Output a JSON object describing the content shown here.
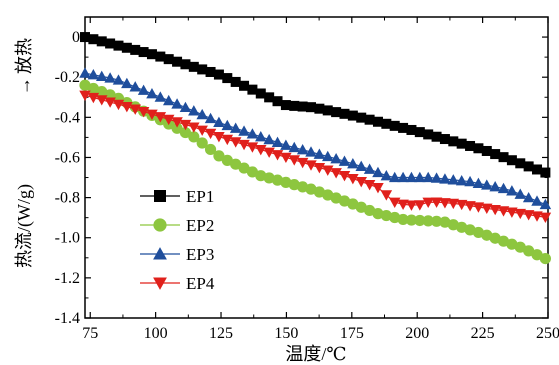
{
  "chart_data": {
    "type": "line",
    "xlabel": "温度/℃",
    "ylabel_main": "热流/(W/g)",
    "ylabel_annotation": "放热",
    "ylabel_arrow": "→",
    "xlim": [
      73,
      250
    ],
    "ylim": [
      -1.4,
      0.1
    ],
    "x_ticks": [
      75,
      100,
      125,
      150,
      175,
      200,
      225,
      250
    ],
    "x_tick_labels": [
      "75",
      "100",
      "125",
      "150",
      "175",
      "200",
      "225",
      "250"
    ],
    "y_ticks": [
      0,
      -0.2,
      -0.4,
      -0.6,
      -0.8,
      -1.0,
      -1.2,
      -1.4
    ],
    "y_tick_labels": [
      "0",
      "-0.2",
      "-0.4",
      "-0.6",
      "-0.8",
      "-1.0",
      "-1.2",
      "-1.4"
    ],
    "grid": false,
    "legend_placement": "lower-left",
    "x_start": 73,
    "x_step": 3.2,
    "series": [
      {
        "name": "EP1",
        "marker": "square",
        "color": "#000000",
        "points": [
          [
            73,
            0.0
          ],
          [
            100,
            -0.09
          ],
          [
            125,
            -0.19
          ],
          [
            145,
            -0.31
          ],
          [
            150,
            -0.34
          ],
          [
            160,
            -0.35
          ],
          [
            175,
            -0.39
          ],
          [
            200,
            -0.47
          ],
          [
            225,
            -0.56
          ],
          [
            250,
            -0.68
          ]
        ]
      },
      {
        "name": "EP2",
        "marker": "circle",
        "color": "#8dc63f",
        "points": [
          [
            73,
            -0.24
          ],
          [
            85,
            -0.3
          ],
          [
            100,
            -0.4
          ],
          [
            115,
            -0.5
          ],
          [
            125,
            -0.6
          ],
          [
            140,
            -0.69
          ],
          [
            160,
            -0.76
          ],
          [
            175,
            -0.83
          ],
          [
            185,
            -0.88
          ],
          [
            195,
            -0.91
          ],
          [
            210,
            -0.92
          ],
          [
            225,
            -0.98
          ],
          [
            240,
            -1.05
          ],
          [
            250,
            -1.11
          ]
        ]
      },
      {
        "name": "EP3",
        "marker": "triangle-up",
        "color": "#1f4e9c",
        "points": [
          [
            73,
            -0.18
          ],
          [
            85,
            -0.21
          ],
          [
            100,
            -0.29
          ],
          [
            115,
            -0.37
          ],
          [
            125,
            -0.43
          ],
          [
            150,
            -0.54
          ],
          [
            170,
            -0.61
          ],
          [
            180,
            -0.65
          ],
          [
            190,
            -0.7
          ],
          [
            205,
            -0.7
          ],
          [
            220,
            -0.72
          ],
          [
            235,
            -0.76
          ],
          [
            250,
            -0.84
          ]
        ]
      },
      {
        "name": "EP4",
        "marker": "triangle-down",
        "color": "#e0201b",
        "points": [
          [
            73,
            -0.29
          ],
          [
            90,
            -0.35
          ],
          [
            100,
            -0.39
          ],
          [
            115,
            -0.45
          ],
          [
            125,
            -0.5
          ],
          [
            150,
            -0.6
          ],
          [
            170,
            -0.68
          ],
          [
            185,
            -0.75
          ],
          [
            192,
            -0.83
          ],
          [
            200,
            -0.84
          ],
          [
            205,
            -0.82
          ],
          [
            215,
            -0.83
          ],
          [
            230,
            -0.86
          ],
          [
            250,
            -0.9
          ]
        ]
      }
    ]
  }
}
